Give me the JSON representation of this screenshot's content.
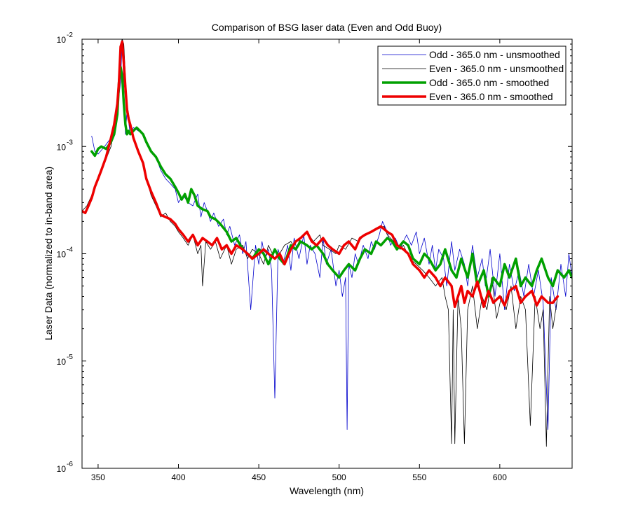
{
  "chart_data": {
    "type": "line",
    "title": "Comparison of BSG laser data (Even and Odd Buoy)",
    "xlabel": "Wavelength (nm)",
    "ylabel": "Laser Data (normalized to in-band area)",
    "xlim": [
      340,
      645
    ],
    "ylim": [
      1e-06,
      0.01
    ],
    "yscale": "log",
    "xticks": [
      350,
      400,
      450,
      500,
      550,
      600
    ],
    "xtick_labels": [
      "350",
      "400",
      "450",
      "500",
      "550",
      "600"
    ],
    "yticks": [
      1e-06,
      1e-05,
      0.0001,
      0.001,
      0.01
    ],
    "ytick_labels": [
      {
        "base": "10",
        "exp": "-6"
      },
      {
        "base": "10",
        "exp": "-5"
      },
      {
        "base": "10",
        "exp": "-4"
      },
      {
        "base": "10",
        "exp": "-3"
      },
      {
        "base": "10",
        "exp": "-2"
      }
    ],
    "grid": false,
    "legend_position": "top-right",
    "series": [
      {
        "name": "Odd - 365.0 nm - unsmoothed",
        "color": "#0000cc",
        "width": 0.8,
        "x": [
          346,
          348,
          350,
          354,
          358,
          360,
          362,
          364,
          365,
          366,
          367,
          368,
          370,
          372,
          375,
          378,
          380,
          383,
          386,
          389,
          392,
          395,
          398,
          400,
          403,
          406,
          409,
          412,
          414,
          416,
          418,
          420,
          422,
          425,
          428,
          430,
          432,
          435,
          438,
          440,
          442,
          445,
          448,
          450,
          452,
          454,
          456,
          458,
          460,
          462,
          465,
          468,
          470,
          472,
          475,
          478,
          480,
          482,
          485,
          488,
          490,
          492,
          495,
          498,
          500,
          502,
          504,
          505,
          506,
          508,
          510,
          512,
          515,
          518,
          520,
          522,
          525,
          527,
          530,
          532,
          535,
          538,
          540,
          542,
          545,
          548,
          550,
          553,
          556,
          558,
          560,
          562,
          565,
          567,
          570,
          572,
          575,
          578,
          580,
          583,
          586,
          589,
          591,
          594,
          597,
          600,
          603,
          606,
          609,
          612,
          615,
          618,
          621,
          624,
          627,
          630,
          632,
          635,
          638,
          641,
          643,
          645
        ],
        "y": [
          0.00125,
          0.0009,
          0.00085,
          0.001,
          0.0012,
          0.0014,
          0.0022,
          0.004,
          0.01,
          0.0035,
          0.0013,
          0.0022,
          0.0013,
          0.0015,
          0.0014,
          0.0013,
          0.0011,
          0.0009,
          0.0008,
          0.0006,
          0.0005,
          0.00045,
          0.0004,
          0.0003,
          0.00035,
          0.0003,
          0.00028,
          0.00036,
          0.00022,
          0.0003,
          0.00025,
          0.0002,
          0.00024,
          0.00018,
          0.00021,
          0.00015,
          0.00018,
          0.00012,
          0.00015,
          0.0001,
          0.00013,
          3e-05,
          0.00012,
          8e-05,
          0.00013,
          9e-05,
          0.00011,
          7e-05,
          4.5e-06,
          0.00011,
          8e-05,
          0.00012,
          7e-05,
          0.00014,
          9e-05,
          0.00015,
          8e-05,
          0.00012,
          0.0001,
          6e-05,
          0.00014,
          8e-05,
          0.00011,
          5e-05,
          7e-05,
          4e-05,
          6e-05,
          2.3e-06,
          8e-05,
          6e-05,
          0.0001,
          8e-05,
          0.00012,
          9e-05,
          0.00013,
          0.00011,
          0.00015,
          0.0002,
          0.00016,
          0.00012,
          0.00014,
          0.00011,
          0.00013,
          0.00015,
          0.00012,
          0.00016,
          0.0001,
          0.00014,
          8e-05,
          0.00012,
          7e-05,
          0.00011,
          9e-05,
          5e-05,
          0.00013,
          7e-05,
          0.00011,
          8e-05,
          5e-05,
          0.00012,
          6e-05,
          9e-05,
          5e-05,
          0.00011,
          4e-05,
          0.0001,
          3e-05,
          8e-05,
          4.5e-05,
          7e-05,
          4e-05,
          8e-05,
          4e-05,
          7e-05,
          3.5e-05,
          2.3e-06,
          6e-05,
          3e-05,
          8e-05,
          4e-05,
          0.0001,
          6e-05
        ]
      },
      {
        "name": "Even - 365.0 nm - unsmoothed",
        "color": "#000000",
        "width": 0.8,
        "x": [
          340,
          343,
          346,
          350,
          354,
          358,
          360,
          362,
          363,
          364,
          365,
          366,
          367,
          368,
          370,
          372,
          375,
          378,
          380,
          383,
          386,
          389,
          392,
          395,
          398,
          400,
          403,
          406,
          409,
          412,
          414,
          415,
          417,
          420,
          423,
          426,
          430,
          433,
          436,
          440,
          443,
          446,
          450,
          453,
          456,
          460,
          463,
          466,
          470,
          473,
          476,
          480,
          484,
          488,
          490,
          494,
          498,
          500,
          504,
          508,
          512,
          516,
          520,
          524,
          528,
          530,
          534,
          538,
          540,
          544,
          548,
          552,
          556,
          560,
          564,
          566,
          568,
          570,
          571,
          572,
          574,
          576,
          578,
          580,
          583,
          586,
          589,
          592,
          595,
          598,
          601,
          604,
          607,
          610,
          613,
          616,
          619,
          622,
          625,
          627,
          629,
          631,
          633,
          636
        ],
        "y": [
          0.00025,
          0.00028,
          0.00035,
          0.0005,
          0.0007,
          0.001,
          0.0014,
          0.0022,
          0.004,
          0.009,
          0.01,
          0.009,
          0.0045,
          0.0025,
          0.0016,
          0.0012,
          0.0009,
          0.0007,
          0.0005,
          0.00035,
          0.00028,
          0.00022,
          0.00024,
          0.0002,
          0.00018,
          0.00016,
          0.00014,
          0.00012,
          0.00015,
          0.0001,
          0.00012,
          5e-05,
          0.00013,
          0.00011,
          0.00013,
          9e-05,
          0.00012,
          8e-05,
          0.00011,
          0.00012,
          9e-05,
          0.00011,
          0.0001,
          8e-05,
          0.00012,
          9e-05,
          0.0001,
          0.00012,
          0.00013,
          0.00011,
          0.00014,
          0.00016,
          0.00013,
          0.00015,
          0.00012,
          0.00011,
          0.0001,
          0.00012,
          0.00011,
          0.00014,
          0.00013,
          0.00015,
          0.00016,
          0.00017,
          0.00018,
          0.00015,
          0.00013,
          0.00011,
          0.00012,
          9e-05,
          8e-05,
          7e-05,
          6e-05,
          5e-05,
          6e-05,
          4e-05,
          3e-05,
          1.7e-06,
          3e-05,
          1.7e-06,
          4e-05,
          2e-05,
          1.7e-06,
          3e-05,
          5e-05,
          2e-05,
          4e-05,
          3e-05,
          6e-05,
          2.5e-05,
          4e-05,
          3e-05,
          5e-05,
          2e-05,
          4e-05,
          3e-05,
          2.5e-06,
          4e-05,
          2e-05,
          3e-05,
          1.6e-06,
          4e-05,
          2e-05,
          4e-05
        ]
      },
      {
        "name": "Odd - 365.0 nm - smoothed",
        "color": "#00a000",
        "width": 3.5,
        "x": [
          346,
          348,
          350,
          352,
          355,
          358,
          360,
          362,
          363,
          364,
          365,
          366,
          367,
          368,
          369,
          370,
          372,
          374,
          376,
          378,
          380,
          383,
          386,
          389,
          392,
          395,
          398,
          400,
          402,
          404,
          406,
          408,
          410,
          412,
          415,
          418,
          420,
          423,
          426,
          430,
          433,
          436,
          440,
          443,
          446,
          450,
          453,
          456,
          460,
          463,
          466,
          470,
          473,
          476,
          480,
          483,
          486,
          490,
          493,
          496,
          500,
          503,
          506,
          510,
          513,
          516,
          520,
          523,
          526,
          530,
          533,
          536,
          540,
          543,
          546,
          550,
          553,
          556,
          560,
          563,
          566,
          570,
          573,
          576,
          580,
          583,
          586,
          590,
          593,
          596,
          600,
          603,
          606,
          610,
          613,
          616,
          620,
          623,
          626,
          630,
          633,
          636,
          640,
          643,
          645
        ],
        "y": [
          0.0009,
          0.00082,
          0.00095,
          0.001,
          0.00095,
          0.0011,
          0.0013,
          0.002,
          0.004,
          0.0055,
          0.0045,
          0.0025,
          0.0016,
          0.0013,
          0.0014,
          0.0013,
          0.0014,
          0.0015,
          0.0014,
          0.0013,
          0.0011,
          0.0009,
          0.0008,
          0.00065,
          0.00055,
          0.0005,
          0.00042,
          0.00037,
          0.00032,
          0.00036,
          0.0003,
          0.0004,
          0.00035,
          0.00028,
          0.00026,
          0.00025,
          0.00022,
          0.00021,
          0.00019,
          0.00016,
          0.00013,
          0.00014,
          0.00011,
          0.0001,
          9e-05,
          0.00011,
          0.0001,
          8e-05,
          0.00011,
          9e-05,
          8e-05,
          0.00012,
          0.00011,
          0.00013,
          0.00012,
          0.00011,
          0.00012,
          0.0001,
          8e-05,
          7e-05,
          6e-05,
          7e-05,
          8e-05,
          7e-05,
          9e-05,
          0.00011,
          0.0001,
          0.00013,
          0.00012,
          0.00014,
          0.00013,
          0.00011,
          0.00013,
          0.00012,
          9e-05,
          8e-05,
          0.0001,
          9e-05,
          7e-05,
          8e-05,
          0.00011,
          7e-05,
          6e-05,
          9e-05,
          6e-05,
          0.0001,
          5e-05,
          7e-05,
          4e-05,
          6e-05,
          5e-05,
          8e-05,
          6e-05,
          9e-05,
          5e-05,
          6e-05,
          5e-05,
          7e-05,
          9e-05,
          6e-05,
          5e-05,
          7e-05,
          6e-05,
          7e-05,
          6e-05
        ]
      },
      {
        "name": "Even - 365.0 nm - smoothed",
        "color": "#ee0000",
        "width": 3.5,
        "x": [
          340,
          342,
          344,
          346,
          348,
          350,
          352,
          355,
          358,
          360,
          362,
          363,
          364,
          365,
          366,
          367,
          368,
          369,
          370,
          372,
          375,
          378,
          380,
          383,
          386,
          389,
          392,
          395,
          398,
          400,
          403,
          406,
          409,
          412,
          415,
          418,
          421,
          424,
          427,
          430,
          433,
          436,
          440,
          443,
          446,
          450,
          453,
          456,
          460,
          463,
          466,
          470,
          473,
          476,
          480,
          483,
          486,
          490,
          493,
          496,
          500,
          503,
          506,
          510,
          513,
          516,
          520,
          523,
          526,
          530,
          533,
          536,
          540,
          543,
          546,
          550,
          553,
          556,
          560,
          563,
          566,
          570,
          572,
          574,
          576,
          578,
          580,
          583,
          586,
          590,
          593,
          596,
          600,
          603,
          606,
          610,
          613,
          616,
          620,
          623,
          626,
          630,
          633,
          636
        ],
        "y": [
          0.00025,
          0.00024,
          0.00028,
          0.00033,
          0.00042,
          0.0005,
          0.0006,
          0.0008,
          0.0012,
          0.0016,
          0.0025,
          0.004,
          0.0085,
          0.0095,
          0.006,
          0.0035,
          0.0022,
          0.0018,
          0.0016,
          0.0012,
          0.0009,
          0.0007,
          0.0005,
          0.00038,
          0.0003,
          0.00023,
          0.00022,
          0.00021,
          0.00019,
          0.00017,
          0.00015,
          0.00013,
          0.00015,
          0.00012,
          0.00014,
          0.00013,
          0.00012,
          0.00014,
          0.00011,
          0.00012,
          0.0001,
          0.00012,
          0.00011,
          0.0001,
          9e-05,
          0.0001,
          0.00011,
          0.0001,
          9e-05,
          0.0001,
          8e-05,
          0.00011,
          0.00013,
          0.00014,
          0.00016,
          0.00013,
          0.00012,
          0.00014,
          0.00012,
          0.00011,
          0.0001,
          0.00012,
          0.00013,
          0.00011,
          0.00014,
          0.00015,
          0.00016,
          0.00017,
          0.00018,
          0.00016,
          0.00015,
          0.00012,
          0.00011,
          0.0001,
          8e-05,
          7e-05,
          6e-05,
          7e-05,
          6e-05,
          5e-05,
          6e-05,
          5e-05,
          3.2e-05,
          4e-05,
          5e-05,
          3.5e-05,
          4.5e-05,
          4e-05,
          5.5e-05,
          3.2e-05,
          4.5e-05,
          3.5e-05,
          4e-05,
          3.3e-05,
          4.5e-05,
          5e-05,
          3.5e-05,
          4e-05,
          4.5e-05,
          3.3e-05,
          4e-05,
          3.5e-05,
          3.5e-05,
          4e-05
        ]
      }
    ]
  }
}
